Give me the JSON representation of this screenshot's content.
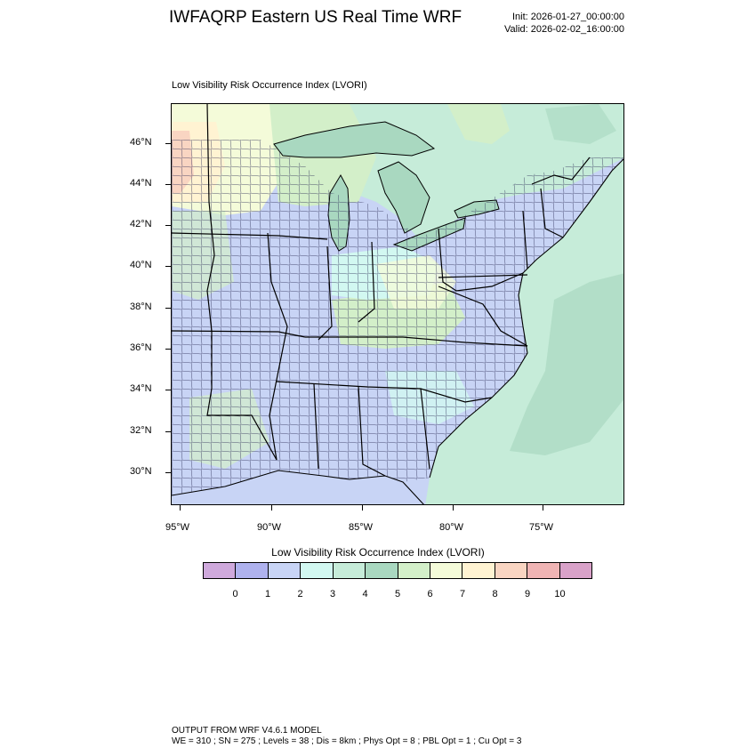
{
  "header": {
    "title": "IWFAQRP Eastern US Real Time WRF",
    "init": "Init: 2026-01-27_00:00:00",
    "valid": "Valid: 2026-02-02_16:00:00"
  },
  "map": {
    "subtitle": "Low Visibility Risk Occurrence Index   (LVORI)",
    "lat_labels": [
      "46°N",
      "44°N",
      "42°N",
      "40°N",
      "38°N",
      "36°N",
      "34°N",
      "32°N",
      "30°N"
    ],
    "lon_labels": [
      "95°W",
      "90°W",
      "85°W",
      "80°W",
      "75°W"
    ],
    "colors": {
      "land_background": "#c8d4f5",
      "state_borders": "#000000",
      "county_lines": "#1a1a40"
    }
  },
  "colorbar": {
    "title": "Low Visibility Risk Occurrence Index  (LVORI)",
    "colors": [
      "#cfa9dc",
      "#afb2ee",
      "#c8d4f5",
      "#d2f8f1",
      "#c6ecd9",
      "#a9d8c0",
      "#d3efc9",
      "#f4fbd9",
      "#fff3d2",
      "#f9d5c2",
      "#efb4b4",
      "#d9a2c9"
    ],
    "labels": [
      "0",
      "1",
      "2",
      "3",
      "4",
      "5",
      "6",
      "7",
      "8",
      "9",
      "10"
    ]
  },
  "footer": {
    "line1": "OUTPUT FROM WRF V4.6.1 MODEL",
    "line2": "WE = 310 ; SN = 275 ; Levels = 38 ; Dis = 8km ; Phys Opt = 8 ; PBL Opt = 1 ; Cu Opt = 3"
  }
}
